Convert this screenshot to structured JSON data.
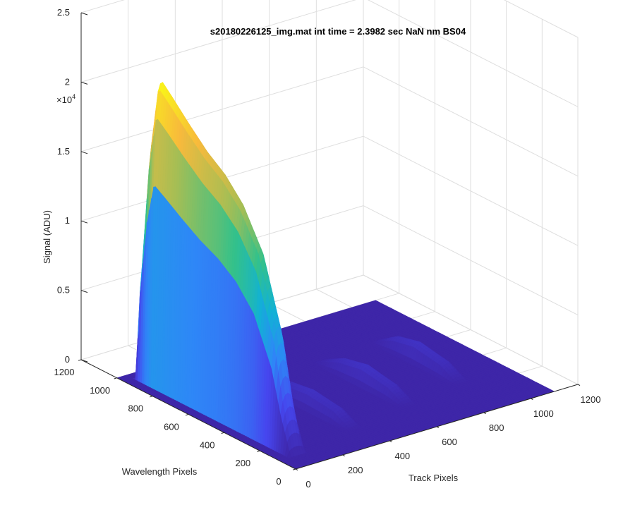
{
  "chart_data": {
    "type": "surface",
    "title": "s20180226125_img.mat int time = 2.3982 sec  NaN nm BS04",
    "xlabel": "Track Pixels",
    "ylabel": "Wavelength Pixels",
    "zlabel": "Signal (ADU)",
    "z_exponent_label": "×10",
    "z_exponent_power": "4",
    "xlim": [
      0,
      1200
    ],
    "ylim": [
      0,
      1200
    ],
    "zlim": [
      0,
      25000
    ],
    "x_ticks": [
      "0",
      "200",
      "400",
      "600",
      "800",
      "1000",
      "1200"
    ],
    "y_ticks": [
      "0",
      "200",
      "400",
      "600",
      "800",
      "1000",
      "1200"
    ],
    "z_ticks": [
      "0",
      "0.5",
      "1",
      "1.5",
      "2",
      "2.5"
    ],
    "grid": true,
    "colormap": [
      "#3e26a8",
      "#4646ee",
      "#2e87f7",
      "#12b1d5",
      "#33c18b",
      "#a4be55",
      "#f8ba3c",
      "#f9fb15"
    ],
    "surface_extent": {
      "x": [
        1,
        1100
      ],
      "y": [
        1,
        1000
      ]
    },
    "peak_tracks": [
      {
        "track_center": 80,
        "track_width": 70,
        "profile": [
          {
            "wavelength": 100,
            "signal": 500
          },
          {
            "wavelength": 150,
            "signal": 4000
          },
          {
            "wavelength": 200,
            "signal": 8500
          },
          {
            "wavelength": 300,
            "signal": 13500
          },
          {
            "wavelength": 400,
            "signal": 16000
          },
          {
            "wavelength": 500,
            "signal": 17500
          },
          {
            "wavelength": 600,
            "signal": 18500
          },
          {
            "wavelength": 700,
            "signal": 19800
          },
          {
            "wavelength": 800,
            "signal": 21200
          },
          {
            "wavelength": 860,
            "signal": 22000
          },
          {
            "wavelength": 900,
            "signal": 17500
          },
          {
            "wavelength": 940,
            "signal": 9000
          },
          {
            "wavelength": 960,
            "signal": 0
          }
        ]
      },
      {
        "track_center": 370,
        "track_width": 60,
        "profile": [
          {
            "wavelength": 150,
            "signal": 0
          },
          {
            "wavelength": 250,
            "signal": 900
          },
          {
            "wavelength": 400,
            "signal": 1200
          },
          {
            "wavelength": 550,
            "signal": 900
          },
          {
            "wavelength": 650,
            "signal": 0
          }
        ]
      },
      {
        "track_center": 640,
        "track_width": 60,
        "profile": [
          {
            "wavelength": 200,
            "signal": 0
          },
          {
            "wavelength": 300,
            "signal": 900
          },
          {
            "wavelength": 450,
            "signal": 1300
          },
          {
            "wavelength": 580,
            "signal": 900
          },
          {
            "wavelength": 700,
            "signal": 0
          }
        ]
      },
      {
        "track_center": 900,
        "track_width": 60,
        "profile": [
          {
            "wavelength": 250,
            "signal": 0
          },
          {
            "wavelength": 350,
            "signal": 900
          },
          {
            "wavelength": 500,
            "signal": 1300
          },
          {
            "wavelength": 620,
            "signal": 900
          },
          {
            "wavelength": 720,
            "signal": 0
          }
        ]
      }
    ]
  }
}
